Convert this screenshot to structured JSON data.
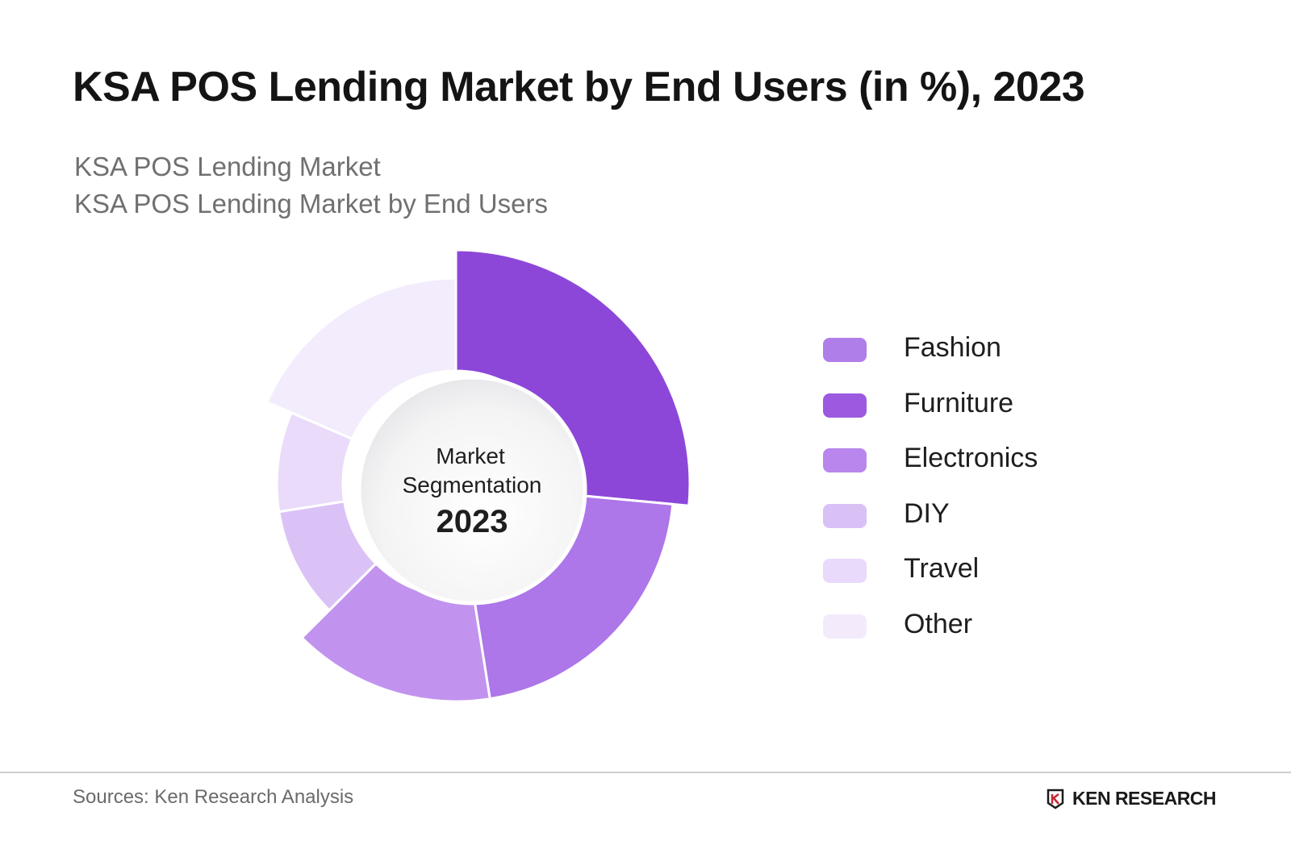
{
  "title": "KSA POS Lending Market by End Users (in %), 2023",
  "subtitle_1": "KSA POS Lending Market",
  "subtitle_2": "KSA POS Lending Market by End Users",
  "center": {
    "line1": "Market",
    "line2": "Segmentation",
    "year": "2023"
  },
  "chart_data": {
    "type": "pie",
    "title": "KSA POS Lending Market by End Users (in %), 2023",
    "categories": [
      "Fashion",
      "Furniture",
      "Electronics",
      "DIY",
      "Travel",
      "Other"
    ],
    "values": [
      26.5,
      21,
      15,
      10,
      9,
      18.5
    ],
    "colors": [
      "#8c47d9",
      "#ad76e9",
      "#c293ee",
      "#dbc2f6",
      "#eadbfa",
      "#f3ecfc"
    ],
    "legend_colors": [
      "#b07ee9",
      "#9b5ae0",
      "#b886ec",
      "#d9c0f5",
      "#e9d9fa",
      "#f3ebfc"
    ],
    "legend_position": "right",
    "chart_style": "variable-radius donut"
  },
  "source": "Sources: Ken Research Analysis",
  "brand": {
    "logo": "ken-research-logo",
    "text": "KEN RESEARCH"
  }
}
